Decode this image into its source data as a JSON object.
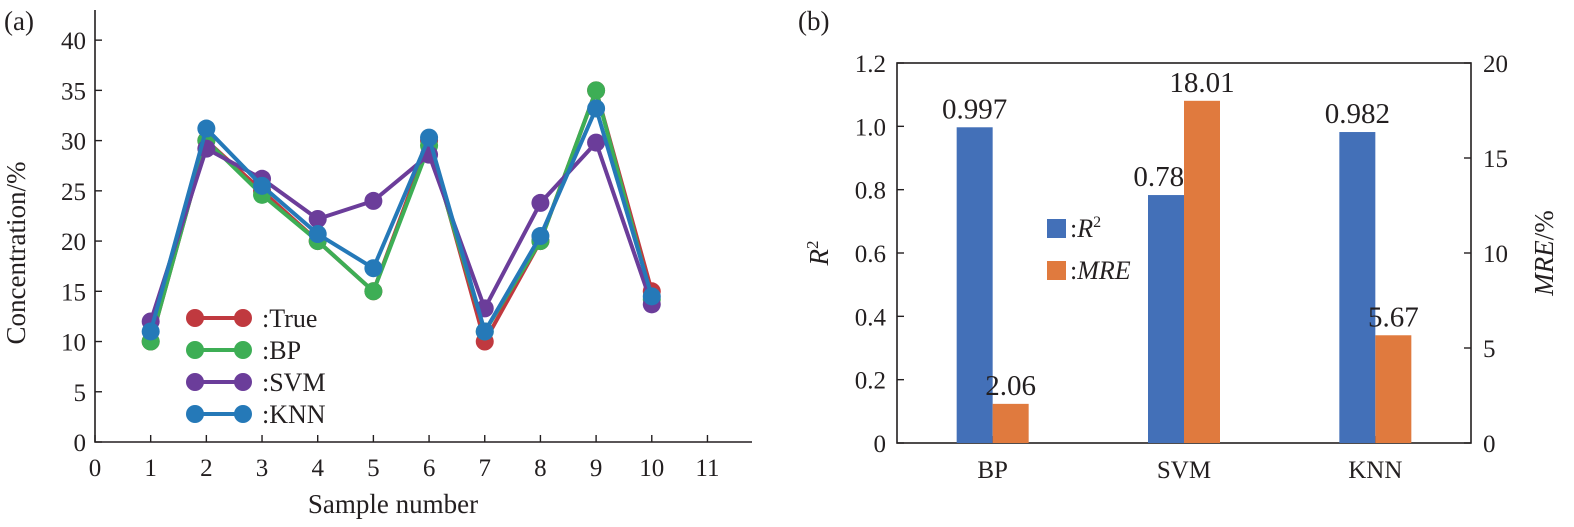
{
  "chart_data": [
    {
      "panel_label": "(a)",
      "type": "line",
      "xlabel": "Sample number",
      "ylabel": "Concentration/%",
      "xlim": [
        0,
        11.8
      ],
      "ylim": [
        0,
        43
      ],
      "x_ticks": [
        0,
        1,
        2,
        3,
        4,
        5,
        6,
        7,
        8,
        9,
        10,
        11
      ],
      "y_ticks": [
        0,
        5,
        10,
        15,
        20,
        25,
        30,
        35,
        40
      ],
      "x": [
        1,
        2,
        3,
        4,
        5,
        6,
        7,
        8,
        9,
        10
      ],
      "grid": false,
      "legend_placement": "lower-left",
      "series": [
        {
          "name": ":True",
          "color": "#c0393f",
          "values": [
            10,
            30,
            25,
            20,
            15,
            30,
            10,
            20,
            35,
            15
          ]
        },
        {
          "name": ":BP",
          "color": "#3dae55",
          "values": [
            10,
            30,
            24.6,
            20,
            15,
            29.5,
            11,
            20,
            35,
            14.2
          ]
        },
        {
          "name": ":SVM",
          "color": "#6b3d9a",
          "values": [
            12,
            29.2,
            26.2,
            22.2,
            24,
            28.6,
            13.3,
            23.8,
            29.8,
            13.7
          ]
        },
        {
          "name": ":KNN",
          "color": "#2579b8",
          "values": [
            11,
            31.2,
            25.5,
            20.7,
            17.3,
            30.3,
            11,
            20.5,
            33.2,
            14.5
          ]
        }
      ]
    },
    {
      "panel_label": "(b)",
      "type": "bar",
      "categories": [
        "BP",
        "SVM",
        "KNN"
      ],
      "ylabel_left": "R2",
      "ylabel_right": "MRE/%",
      "ylim_left": [
        0,
        1.2
      ],
      "ylim_right": [
        0,
        20
      ],
      "y_ticks_left": [
        "0",
        "0.2",
        "0.4",
        "0.6",
        "0.8",
        "1.0",
        "1.2"
      ],
      "y_ticks_right": [
        "0",
        "5",
        "10",
        "15",
        "20"
      ],
      "legend_placement": "center",
      "series": [
        {
          "name": ":R2",
          "axis": "left",
          "color": "#4370b8",
          "values": [
            0.997,
            0.783,
            0.982
          ],
          "labels": [
            "0.997",
            "0.783",
            "0.982"
          ]
        },
        {
          "name": ":MRE",
          "axis": "right",
          "color": "#e07a3e",
          "values": [
            2.06,
            18.01,
            5.67
          ],
          "labels": [
            "2.06",
            "18.01",
            "5.67"
          ]
        }
      ]
    }
  ]
}
